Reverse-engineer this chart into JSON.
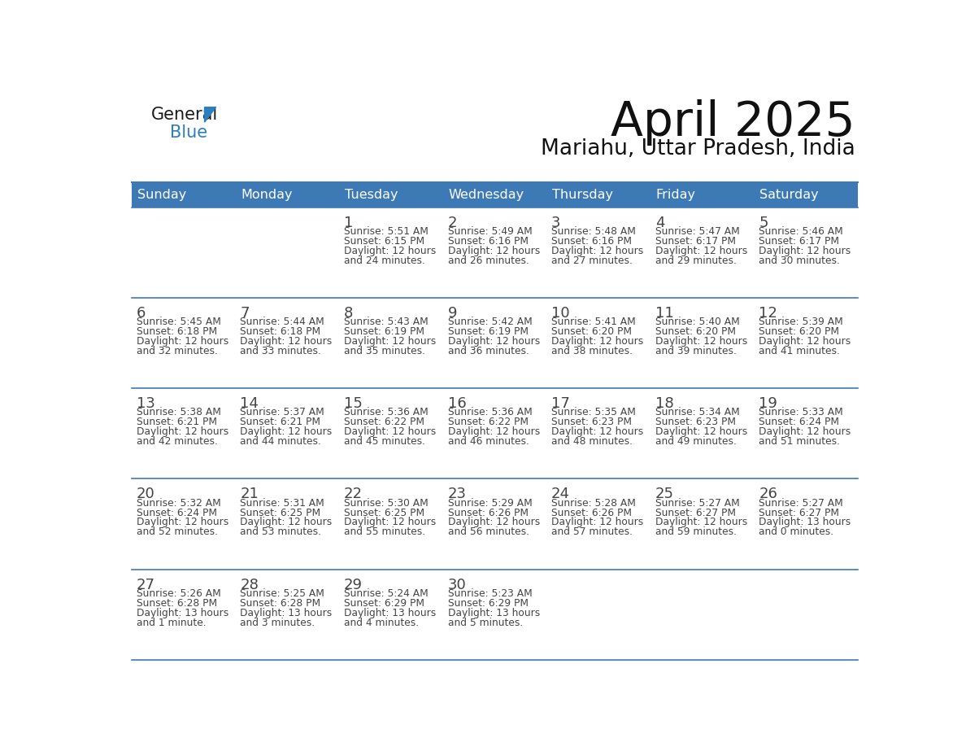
{
  "title": "April 2025",
  "subtitle": "Mariahu, Uttar Pradesh, India",
  "header_bg": "#3d7ab5",
  "header_text_color": "#ffffff",
  "cell_bg": "#ffffff",
  "border_color": "#3d7ab5",
  "text_color": "#444444",
  "days_of_week": [
    "Sunday",
    "Monday",
    "Tuesday",
    "Wednesday",
    "Thursday",
    "Friday",
    "Saturday"
  ],
  "weeks": [
    [
      {
        "day": "",
        "sunrise": "",
        "sunset": "",
        "daylight_hrs": "",
        "daylight_min": ""
      },
      {
        "day": "",
        "sunrise": "",
        "sunset": "",
        "daylight_hrs": "",
        "daylight_min": ""
      },
      {
        "day": "1",
        "sunrise": "5:51 AM",
        "sunset": "6:15 PM",
        "daylight_hrs": "12",
        "daylight_min": "24 minutes."
      },
      {
        "day": "2",
        "sunrise": "5:49 AM",
        "sunset": "6:16 PM",
        "daylight_hrs": "12",
        "daylight_min": "26 minutes."
      },
      {
        "day": "3",
        "sunrise": "5:48 AM",
        "sunset": "6:16 PM",
        "daylight_hrs": "12",
        "daylight_min": "27 minutes."
      },
      {
        "day": "4",
        "sunrise": "5:47 AM",
        "sunset": "6:17 PM",
        "daylight_hrs": "12",
        "daylight_min": "29 minutes."
      },
      {
        "day": "5",
        "sunrise": "5:46 AM",
        "sunset": "6:17 PM",
        "daylight_hrs": "12",
        "daylight_min": "30 minutes."
      }
    ],
    [
      {
        "day": "6",
        "sunrise": "5:45 AM",
        "sunset": "6:18 PM",
        "daylight_hrs": "12",
        "daylight_min": "32 minutes."
      },
      {
        "day": "7",
        "sunrise": "5:44 AM",
        "sunset": "6:18 PM",
        "daylight_hrs": "12",
        "daylight_min": "33 minutes."
      },
      {
        "day": "8",
        "sunrise": "5:43 AM",
        "sunset": "6:19 PM",
        "daylight_hrs": "12",
        "daylight_min": "35 minutes."
      },
      {
        "day": "9",
        "sunrise": "5:42 AM",
        "sunset": "6:19 PM",
        "daylight_hrs": "12",
        "daylight_min": "36 minutes."
      },
      {
        "day": "10",
        "sunrise": "5:41 AM",
        "sunset": "6:20 PM",
        "daylight_hrs": "12",
        "daylight_min": "38 minutes."
      },
      {
        "day": "11",
        "sunrise": "5:40 AM",
        "sunset": "6:20 PM",
        "daylight_hrs": "12",
        "daylight_min": "39 minutes."
      },
      {
        "day": "12",
        "sunrise": "5:39 AM",
        "sunset": "6:20 PM",
        "daylight_hrs": "12",
        "daylight_min": "41 minutes."
      }
    ],
    [
      {
        "day": "13",
        "sunrise": "5:38 AM",
        "sunset": "6:21 PM",
        "daylight_hrs": "12",
        "daylight_min": "42 minutes."
      },
      {
        "day": "14",
        "sunrise": "5:37 AM",
        "sunset": "6:21 PM",
        "daylight_hrs": "12",
        "daylight_min": "44 minutes."
      },
      {
        "day": "15",
        "sunrise": "5:36 AM",
        "sunset": "6:22 PM",
        "daylight_hrs": "12",
        "daylight_min": "45 minutes."
      },
      {
        "day": "16",
        "sunrise": "5:36 AM",
        "sunset": "6:22 PM",
        "daylight_hrs": "12",
        "daylight_min": "46 minutes."
      },
      {
        "day": "17",
        "sunrise": "5:35 AM",
        "sunset": "6:23 PM",
        "daylight_hrs": "12",
        "daylight_min": "48 minutes."
      },
      {
        "day": "18",
        "sunrise": "5:34 AM",
        "sunset": "6:23 PM",
        "daylight_hrs": "12",
        "daylight_min": "49 minutes."
      },
      {
        "day": "19",
        "sunrise": "5:33 AM",
        "sunset": "6:24 PM",
        "daylight_hrs": "12",
        "daylight_min": "51 minutes."
      }
    ],
    [
      {
        "day": "20",
        "sunrise": "5:32 AM",
        "sunset": "6:24 PM",
        "daylight_hrs": "12",
        "daylight_min": "52 minutes."
      },
      {
        "day": "21",
        "sunrise": "5:31 AM",
        "sunset": "6:25 PM",
        "daylight_hrs": "12",
        "daylight_min": "53 minutes."
      },
      {
        "day": "22",
        "sunrise": "5:30 AM",
        "sunset": "6:25 PM",
        "daylight_hrs": "12",
        "daylight_min": "55 minutes."
      },
      {
        "day": "23",
        "sunrise": "5:29 AM",
        "sunset": "6:26 PM",
        "daylight_hrs": "12",
        "daylight_min": "56 minutes."
      },
      {
        "day": "24",
        "sunrise": "5:28 AM",
        "sunset": "6:26 PM",
        "daylight_hrs": "12",
        "daylight_min": "57 minutes."
      },
      {
        "day": "25",
        "sunrise": "5:27 AM",
        "sunset": "6:27 PM",
        "daylight_hrs": "12",
        "daylight_min": "59 minutes."
      },
      {
        "day": "26",
        "sunrise": "5:27 AM",
        "sunset": "6:27 PM",
        "daylight_hrs": "13",
        "daylight_min": "0 minutes."
      }
    ],
    [
      {
        "day": "27",
        "sunrise": "5:26 AM",
        "sunset": "6:28 PM",
        "daylight_hrs": "13",
        "daylight_min": "1 minute."
      },
      {
        "day": "28",
        "sunrise": "5:25 AM",
        "sunset": "6:28 PM",
        "daylight_hrs": "13",
        "daylight_min": "3 minutes."
      },
      {
        "day": "29",
        "sunrise": "5:24 AM",
        "sunset": "6:29 PM",
        "daylight_hrs": "13",
        "daylight_min": "4 minutes."
      },
      {
        "day": "30",
        "sunrise": "5:23 AM",
        "sunset": "6:29 PM",
        "daylight_hrs": "13",
        "daylight_min": "5 minutes."
      },
      {
        "day": "",
        "sunrise": "",
        "sunset": "",
        "daylight_hrs": "",
        "daylight_min": ""
      },
      {
        "day": "",
        "sunrise": "",
        "sunset": "",
        "daylight_hrs": "",
        "daylight_min": ""
      },
      {
        "day": "",
        "sunrise": "",
        "sunset": "",
        "daylight_hrs": "",
        "daylight_min": ""
      }
    ]
  ],
  "logo_general_color": "#1a1a1a",
  "logo_blue_color": "#2b7ec1",
  "logo_triangle_color": "#2b7ec1"
}
